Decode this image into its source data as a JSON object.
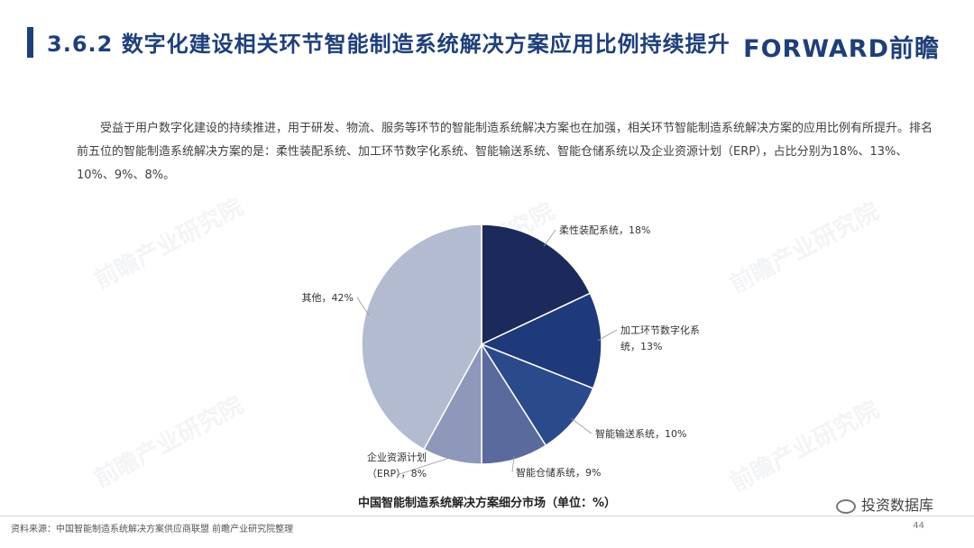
{
  "header": {
    "title": "3.6.2 数字化建设相关环节智能制造系统解决方案应用比例持续提升",
    "logo": "FORWARD前瞻"
  },
  "intro": "受益于用户数字化建设的持续推进，用于研发、物流、服务等环节的智能制造系统解决方案也在加强，相关环节智能制造系统解决方案的应用比例有所提升。排名前五位的智能制造系统解决方案的是：柔性装配系统、加工环节数字化系统、智能输送系统、智能仓储系统以及企业资源计划（ERP），占比分别为18%、13%、10%、9%、8%。",
  "watermark": "前瞻产业研究院",
  "chart_data": {
    "type": "pie",
    "title": "中国智能制造系统解决方案细分市场（单位：%）",
    "unit": "%",
    "start_angle": "12 o'clock",
    "direction": "clockwise",
    "slices": [
      {
        "label": "柔性装配系统",
        "value": 18,
        "color": "#1b2a5b",
        "label_lines": [
          "柔性装配系统，18%"
        ]
      },
      {
        "label": "加工环节数字化系统",
        "value": 13,
        "color": "#1e3a7b",
        "label_lines": [
          "加工环节数字化系",
          "统，13%"
        ]
      },
      {
        "label": "智能输送系统",
        "value": 10,
        "color": "#2b4a8c",
        "label_lines": [
          "智能输送系统，10%"
        ]
      },
      {
        "label": "智能仓储系统",
        "value": 9,
        "color": "#5a6a9c",
        "label_lines": [
          "智能仓储系统，9%"
        ]
      },
      {
        "label": "企业资源计划（ERP）",
        "value": 8,
        "color": "#8d98bb",
        "label_lines": [
          "企业资源计划",
          "（ERP），8%"
        ]
      },
      {
        "label": "其他",
        "value": 42,
        "color": "#b3bbd1",
        "label_lines": [
          "其他，42%"
        ]
      }
    ]
  },
  "footer": {
    "source": "资料来源：中国智能制造系统解决方案供应商联盟  前瞻产业研究院整理",
    "page": "44",
    "brand": "投资数据库"
  }
}
